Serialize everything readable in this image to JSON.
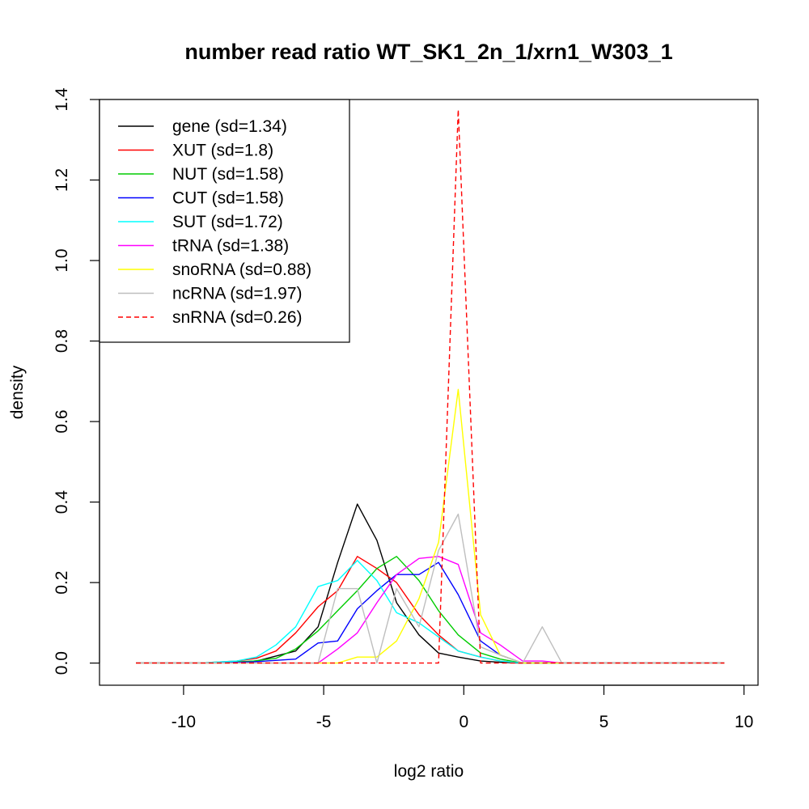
{
  "chart_data": {
    "type": "line",
    "title": "number read ratio WT_SK1_2n_1/xrn1_W303_1",
    "xlabel": "log2 ratio",
    "ylabel": "density",
    "xlim": [
      -13,
      10.5
    ],
    "ylim": [
      -0.055,
      1.4
    ],
    "x_ticks": [
      -10,
      -5,
      0,
      5,
      10
    ],
    "x_tick_labels": [
      "-10",
      "-5",
      "0",
      "5",
      "10"
    ],
    "y_ticks": [
      0.0,
      0.2,
      0.4,
      0.6,
      0.8,
      1.0,
      1.2,
      1.4
    ],
    "y_tick_labels": [
      "0.0",
      "0.2",
      "0.4",
      "0.6",
      "0.8",
      "1.0",
      "1.2",
      "1.4"
    ],
    "grid": false,
    "legend_position": "top-left",
    "series": [
      {
        "name": "gene (sd=1.34)",
        "color": "#000000",
        "dash": false,
        "x": [
          -11.7,
          -9,
          -7.5,
          -6,
          -5.2,
          -4.5,
          -3.8,
          -3.1,
          -2.4,
          -1.6,
          -0.9,
          -0.2,
          0.6,
          1.3,
          2,
          3,
          9.3
        ],
        "y": [
          0,
          0,
          0.003,
          0.03,
          0.09,
          0.25,
          0.395,
          0.305,
          0.15,
          0.07,
          0.025,
          0.015,
          0.005,
          0.002,
          0,
          0,
          0
        ]
      },
      {
        "name": "XUT (sd=1.8)",
        "color": "#ff0000",
        "dash": false,
        "x": [
          -11.7,
          -9.5,
          -8.1,
          -7.4,
          -6.7,
          -6,
          -5.2,
          -4.5,
          -3.8,
          -3.1,
          -2.4,
          -1.6,
          -0.9,
          -0.2,
          0.6,
          1.3,
          2.1,
          3,
          9.3
        ],
        "y": [
          0,
          0,
          0.005,
          0.012,
          0.03,
          0.075,
          0.14,
          0.18,
          0.265,
          0.235,
          0.2,
          0.12,
          0.07,
          0.03,
          0.015,
          0.005,
          0,
          0,
          0
        ]
      },
      {
        "name": "NUT (sd=1.58)",
        "color": "#00cc00",
        "dash": false,
        "x": [
          -11.7,
          -9,
          -7.5,
          -6.7,
          -6,
          -5.2,
          -4.5,
          -3.8,
          -3.1,
          -2.4,
          -1.6,
          -0.9,
          -0.2,
          0.6,
          1.3,
          2.1,
          9.3
        ],
        "y": [
          0,
          0,
          0.005,
          0.012,
          0.035,
          0.08,
          0.13,
          0.18,
          0.235,
          0.265,
          0.205,
          0.13,
          0.07,
          0.025,
          0.01,
          0,
          0
        ]
      },
      {
        "name": "CUT (sd=1.58)",
        "color": "#0000ff",
        "dash": false,
        "x": [
          -11.7,
          -9,
          -7.5,
          -6,
          -5.2,
          -4.5,
          -3.8,
          -3.1,
          -2.4,
          -1.6,
          -0.9,
          -0.2,
          0.6,
          1.3,
          2.1,
          9.3
        ],
        "y": [
          0,
          0,
          0.003,
          0.01,
          0.05,
          0.055,
          0.135,
          0.18,
          0.22,
          0.22,
          0.25,
          0.17,
          0.055,
          0.02,
          0,
          0
        ]
      },
      {
        "name": "SUT (sd=1.72)",
        "color": "#00ffff",
        "dash": false,
        "x": [
          -11.7,
          -9.5,
          -8.1,
          -7.4,
          -6.7,
          -6,
          -5.2,
          -4.5,
          -3.8,
          -3.1,
          -2.4,
          -1.6,
          -0.9,
          -0.2,
          0.6,
          1.3,
          2.1,
          9.3
        ],
        "y": [
          0,
          0,
          0.005,
          0.015,
          0.045,
          0.09,
          0.19,
          0.205,
          0.255,
          0.205,
          0.125,
          0.1,
          0.065,
          0.03,
          0.015,
          0.005,
          0,
          0
        ]
      },
      {
        "name": "tRNA (sd=1.38)",
        "color": "#ff00ff",
        "dash": false,
        "x": [
          -11.7,
          -6,
          -5.2,
          -4.5,
          -3.8,
          -3.1,
          -2.4,
          -1.6,
          -0.9,
          -0.2,
          0.6,
          1.3,
          2.1,
          2.8,
          3.5,
          9.3
        ],
        "y": [
          0,
          0,
          0,
          0.035,
          0.075,
          0.15,
          0.22,
          0.26,
          0.265,
          0.245,
          0.075,
          0.045,
          0.005,
          0.005,
          0,
          0
        ]
      },
      {
        "name": "snoRNA (sd=0.88)",
        "color": "#ffff00",
        "dash": false,
        "x": [
          -11.7,
          -5.2,
          -4.5,
          -3.8,
          -3.1,
          -2.4,
          -1.6,
          -0.9,
          -0.2,
          0.6,
          1.3,
          2.1,
          9.3
        ],
        "y": [
          0,
          0,
          0,
          0.015,
          0.015,
          0.055,
          0.16,
          0.3,
          0.68,
          0.12,
          0.02,
          0,
          0
        ]
      },
      {
        "name": "ncRNA (sd=1.97)",
        "color": "#bebebe",
        "dash": false,
        "x": [
          -11.7,
          -5.6,
          -5.2,
          -4.5,
          -3.8,
          -3.1,
          -2.4,
          -1.6,
          -0.9,
          -0.2,
          0.6,
          1.3,
          2.1,
          2.8,
          3.5,
          9.3
        ],
        "y": [
          0,
          0,
          0,
          0.185,
          0.185,
          0,
          0.185,
          0.09,
          0.28,
          0.37,
          0.04,
          0.02,
          0,
          0.09,
          0,
          0
        ]
      },
      {
        "name": "snRNA (sd=0.26)",
        "color": "#ff0000",
        "dash": true,
        "x": [
          -11.7,
          -0.9,
          -0.2,
          0.6,
          9.3
        ],
        "y": [
          0,
          0,
          1.375,
          0,
          0
        ]
      }
    ]
  }
}
